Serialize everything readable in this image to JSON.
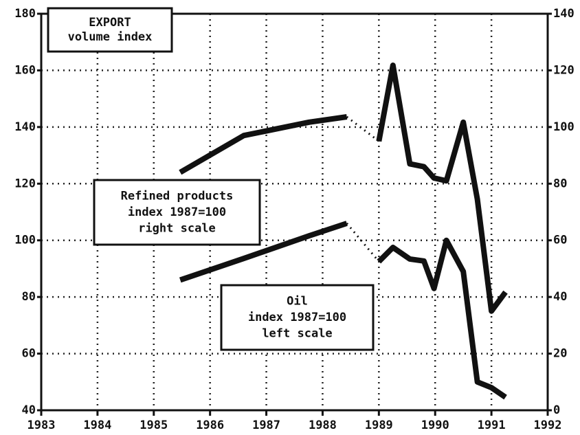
{
  "chart_data": {
    "type": "line",
    "title": [
      "EXPORT",
      "volume index"
    ],
    "annotations": [
      {
        "lines": [
          "Refined products",
          "index 1987=100",
          "right scale"
        ]
      },
      {
        "lines": [
          "Oil",
          "index 1987=100",
          "left scale"
        ]
      }
    ],
    "x": [
      1985.47,
      1986.6,
      1987.76,
      1988.43,
      1989,
      1989.25,
      1989.55,
      1989.8,
      1989.98,
      1990.2,
      1990.5,
      1990.75,
      1991,
      1991.25
    ],
    "series": [
      {
        "name": "Refined products",
        "axis": "y2",
        "color": "#111111",
        "dotted_x": [
          1988.43,
          1989
        ],
        "values": [
          84,
          97,
          101.7,
          103.6,
          95,
          121.8,
          87,
          86,
          82,
          81,
          101.7,
          74.5,
          35,
          41.7
        ]
      },
      {
        "name": "Oil",
        "axis": "y",
        "color": "#111111",
        "dotted_x": [
          1988.43,
          1989
        ],
        "values": [
          86,
          93.6,
          101.6,
          106,
          92.5,
          97.5,
          93.4,
          92.7,
          83,
          100,
          89,
          50,
          48,
          44.6
        ]
      }
    ],
    "xlim": [
      1983,
      1992
    ],
    "xticks": [
      1983,
      1984,
      1985,
      1986,
      1987,
      1988,
      1989,
      1990,
      1991,
      1992
    ],
    "ylim": [
      40,
      180
    ],
    "yticks": [
      40,
      60,
      80,
      100,
      120,
      140,
      160,
      180
    ],
    "y2lim": [
      0,
      140
    ],
    "y2ticks": [
      0,
      20,
      40,
      60,
      80,
      100,
      120,
      140
    ],
    "grid": true
  }
}
